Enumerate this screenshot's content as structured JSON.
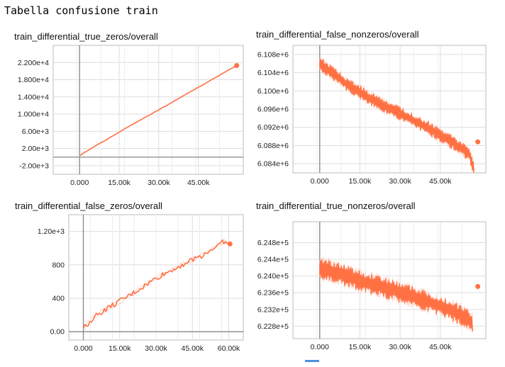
{
  "page_title": "Tabella confusione train",
  "colors": {
    "line": "#ff7043",
    "smooth_band": "#ffc9b8",
    "grid": "#dddddd",
    "axis": "#888888",
    "plot_border": "#bbbbbb"
  },
  "chart_data": [
    {
      "type": "line",
      "title": "train_differential_true_zeros/overall",
      "xlabel": "",
      "ylabel": "",
      "xlim": [
        -10000,
        62000
      ],
      "ylim": [
        -4000,
        26000
      ],
      "xticks": [
        0,
        15000,
        30000,
        45000
      ],
      "xtick_labels": [
        "0.000",
        "15.00k",
        "30.00k",
        "45.00k"
      ],
      "yticks": [
        -2000,
        2000,
        6000,
        10000,
        14000,
        18000,
        22000
      ],
      "ytick_labels": [
        "-2.00e+3",
        "2.00e+3",
        "6.00e+3",
        "1.000e+4",
        "1.400e+4",
        "1.800e+4",
        "2.200e+4"
      ],
      "grid": true,
      "noise": 0.003,
      "series": [
        {
          "x": [
            0,
            5000,
            10000,
            20000,
            30000,
            40000,
            50000,
            59500
          ],
          "y": [
            300,
            2300,
            4000,
            7600,
            11000,
            14500,
            18000,
            21300
          ]
        }
      ],
      "last_point": {
        "x": 59500,
        "y": 21300
      }
    },
    {
      "type": "line",
      "title": "train_differential_false_nonzeros/overall",
      "xlabel": "",
      "ylabel": "",
      "xlim": [
        -10000,
        62000
      ],
      "ylim": [
        6082000,
        6110000
      ],
      "xticks": [
        0,
        15000,
        30000,
        45000
      ],
      "xtick_labels": [
        "0.000",
        "15.00k",
        "30.00k",
        "45.00k"
      ],
      "yticks": [
        6084000,
        6088000,
        6092000,
        6096000,
        6100000,
        6104000,
        6108000
      ],
      "ytick_labels": [
        "6.084e+6",
        "6.088e+6",
        "6.092e+6",
        "6.096e+6",
        "6.100e+6",
        "6.104e+6",
        "6.108e+6"
      ],
      "grid": true,
      "noise": 0.15,
      "series": [
        {
          "x": [
            0,
            10000,
            20000,
            30000,
            40000,
            50000,
            56000,
            57500
          ],
          "y": [
            6106000,
            6101500,
            6098000,
            6095000,
            6092000,
            6088500,
            6086000,
            6083000
          ]
        }
      ],
      "last_point": {
        "x": 59000,
        "y": 6088800
      }
    },
    {
      "type": "line",
      "title": "train_differential_false_zeros/overall",
      "xlabel": "",
      "ylabel": "",
      "xlim": [
        -6000,
        66000
      ],
      "ylim": [
        -100,
        1400
      ],
      "xticks": [
        0,
        15000,
        30000,
        45000,
        60000
      ],
      "xtick_labels": [
        "0.000",
        "15.00k",
        "30.00k",
        "45.00k",
        "60.00k"
      ],
      "yticks": [
        0,
        400,
        800,
        1200
      ],
      "ytick_labels": [
        "0.00",
        "400",
        "800",
        "1.20e+3"
      ],
      "grid": true,
      "noise": 0.04,
      "series": [
        {
          "x": [
            0,
            5000,
            10000,
            20000,
            30000,
            40000,
            50000,
            58000,
            60000
          ],
          "y": [
            40,
            190,
            280,
            450,
            640,
            790,
            930,
            1080,
            1050
          ]
        }
      ],
      "last_point": {
        "x": 60500,
        "y": 1050
      }
    },
    {
      "type": "line",
      "title": "train_differential_true_nonzeros/overall",
      "xlabel": "",
      "ylabel": "",
      "xlim": [
        -10000,
        62000
      ],
      "ylim": [
        622500,
        625300
      ],
      "xticks": [
        0,
        15000,
        30000,
        45000
      ],
      "xtick_labels": [
        "0.000",
        "15.00k",
        "30.00k",
        "45.00k"
      ],
      "yticks": [
        622800,
        623200,
        623600,
        624000,
        624400,
        624800
      ],
      "ytick_labels": [
        "6.228e+5",
        "6.232e+5",
        "6.236e+5",
        "6.240e+5",
        "6.244e+5",
        "6.248e+5"
      ],
      "grid": true,
      "noise": 0.25,
      "series": [
        {
          "x": [
            0,
            10000,
            20000,
            30000,
            40000,
            50000,
            57000
          ],
          "y": [
            624200,
            624000,
            623800,
            623600,
            623400,
            623150,
            622900
          ]
        }
      ],
      "last_point": {
        "x": 59000,
        "y": 623750
      }
    }
  ]
}
